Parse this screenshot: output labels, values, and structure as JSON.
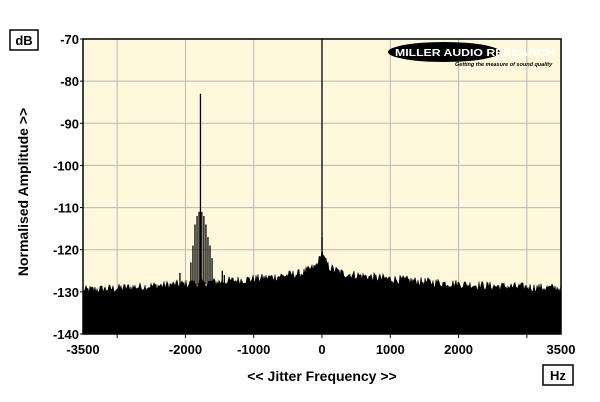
{
  "chart_data": {
    "type": "line",
    "title": "",
    "xlabel": "<< Jitter Frequency >>",
    "ylabel": "Normalised Amplitude >>",
    "x_unit": "Hz",
    "y_unit": "dB",
    "xlim": [
      -3500,
      3500
    ],
    "ylim": [
      -140,
      -70
    ],
    "x_ticks": [
      -3500,
      -2000,
      -1000,
      0,
      1000,
      2000,
      3500
    ],
    "x_tick_labels": [
      "-3500",
      "-2000",
      "-1000",
      "0",
      "1000",
      "2000",
      "3500"
    ],
    "x_gridlines": [
      -3000,
      -2000,
      -1000,
      0,
      1000,
      2000,
      3000
    ],
    "y_ticks": [
      -70,
      -80,
      -90,
      -100,
      -110,
      -120,
      -130,
      -140
    ],
    "y_tick_labels": [
      "-70",
      "-80",
      "-90",
      "-100",
      "-110",
      "-120",
      "-130",
      "-140"
    ],
    "grid": true,
    "background_color": "#fff8dc",
    "trace_color": "#000000",
    "series": [
      {
        "noise_floor": [
          {
            "x": -3500,
            "y": -130
          },
          {
            "x": -2500,
            "y": -129
          },
          {
            "x": -1500,
            "y": -128
          },
          {
            "x": -800,
            "y": -127
          },
          {
            "x": -300,
            "y": -126
          },
          {
            "x": -100,
            "y": -124.5
          },
          {
            "x": -30,
            "y": -122.5
          },
          {
            "x": 0,
            "y": -120
          },
          {
            "x": 30,
            "y": -122.5
          },
          {
            "x": 100,
            "y": -124.5
          },
          {
            "x": 300,
            "y": -126
          },
          {
            "x": 800,
            "y": -127
          },
          {
            "x": 1500,
            "y": -128
          },
          {
            "x": 2500,
            "y": -129
          },
          {
            "x": 3500,
            "y": -129.5
          }
        ],
        "spikes": [
          {
            "x": 0,
            "y": -70
          },
          {
            "x": 0,
            "y": -117
          },
          {
            "x": -1920,
            "y": -123
          },
          {
            "x": -1890,
            "y": -119
          },
          {
            "x": -1860,
            "y": -114
          },
          {
            "x": -1830,
            "y": -112
          },
          {
            "x": -1800,
            "y": -111
          },
          {
            "x": -1780,
            "y": -83
          },
          {
            "x": -1760,
            "y": -111
          },
          {
            "x": -1730,
            "y": -112
          },
          {
            "x": -1700,
            "y": -114
          },
          {
            "x": -1670,
            "y": -117
          },
          {
            "x": -1640,
            "y": -119
          },
          {
            "x": -1610,
            "y": -122
          },
          {
            "x": -1460,
            "y": -125
          },
          {
            "x": -1430,
            "y": -126
          },
          {
            "x": -2080,
            "y": -125.5
          }
        ]
      }
    ]
  },
  "branding": {
    "logo_main": "MILLER AUDIO RESEARCH",
    "logo_tagline": "Getting the measure of sound quality"
  }
}
